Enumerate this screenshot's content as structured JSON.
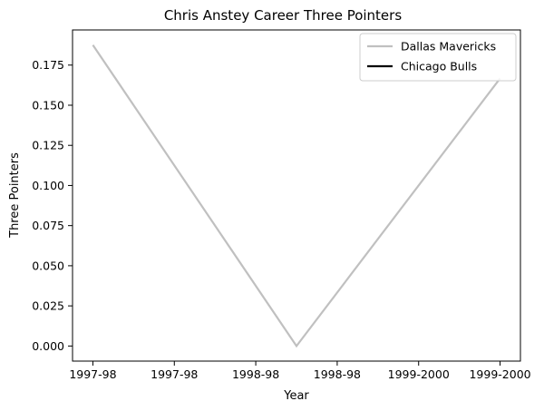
{
  "chart_data": {
    "type": "line",
    "title": "Chris Anstey Career Three Pointers",
    "xlabel": "Year",
    "ylabel": "Three Pointers",
    "x_ticks": [
      "1997-98",
      "1997-98",
      "1998-98",
      "1998-98",
      "1999-2000",
      "1999-2000"
    ],
    "x_range": [
      -0.1,
      2.1
    ],
    "ylim": [
      -0.0094,
      0.1969
    ],
    "y_ticks": [
      0.0,
      0.025,
      0.05,
      0.075,
      0.1,
      0.125,
      0.15,
      0.175
    ],
    "y_tick_labels": [
      "0.000",
      "0.025",
      "0.050",
      "0.075",
      "0.100",
      "0.125",
      "0.150",
      "0.175"
    ],
    "grid": false,
    "legend_position": "top-right",
    "series": [
      {
        "name": "Dallas Mavericks",
        "color": "#c0c0c0",
        "x": [
          0,
          1,
          2
        ],
        "y": [
          0.1875,
          0.0,
          0.1667
        ]
      },
      {
        "name": "Chicago Bulls",
        "color": "#000000",
        "x": [],
        "y": []
      }
    ]
  }
}
